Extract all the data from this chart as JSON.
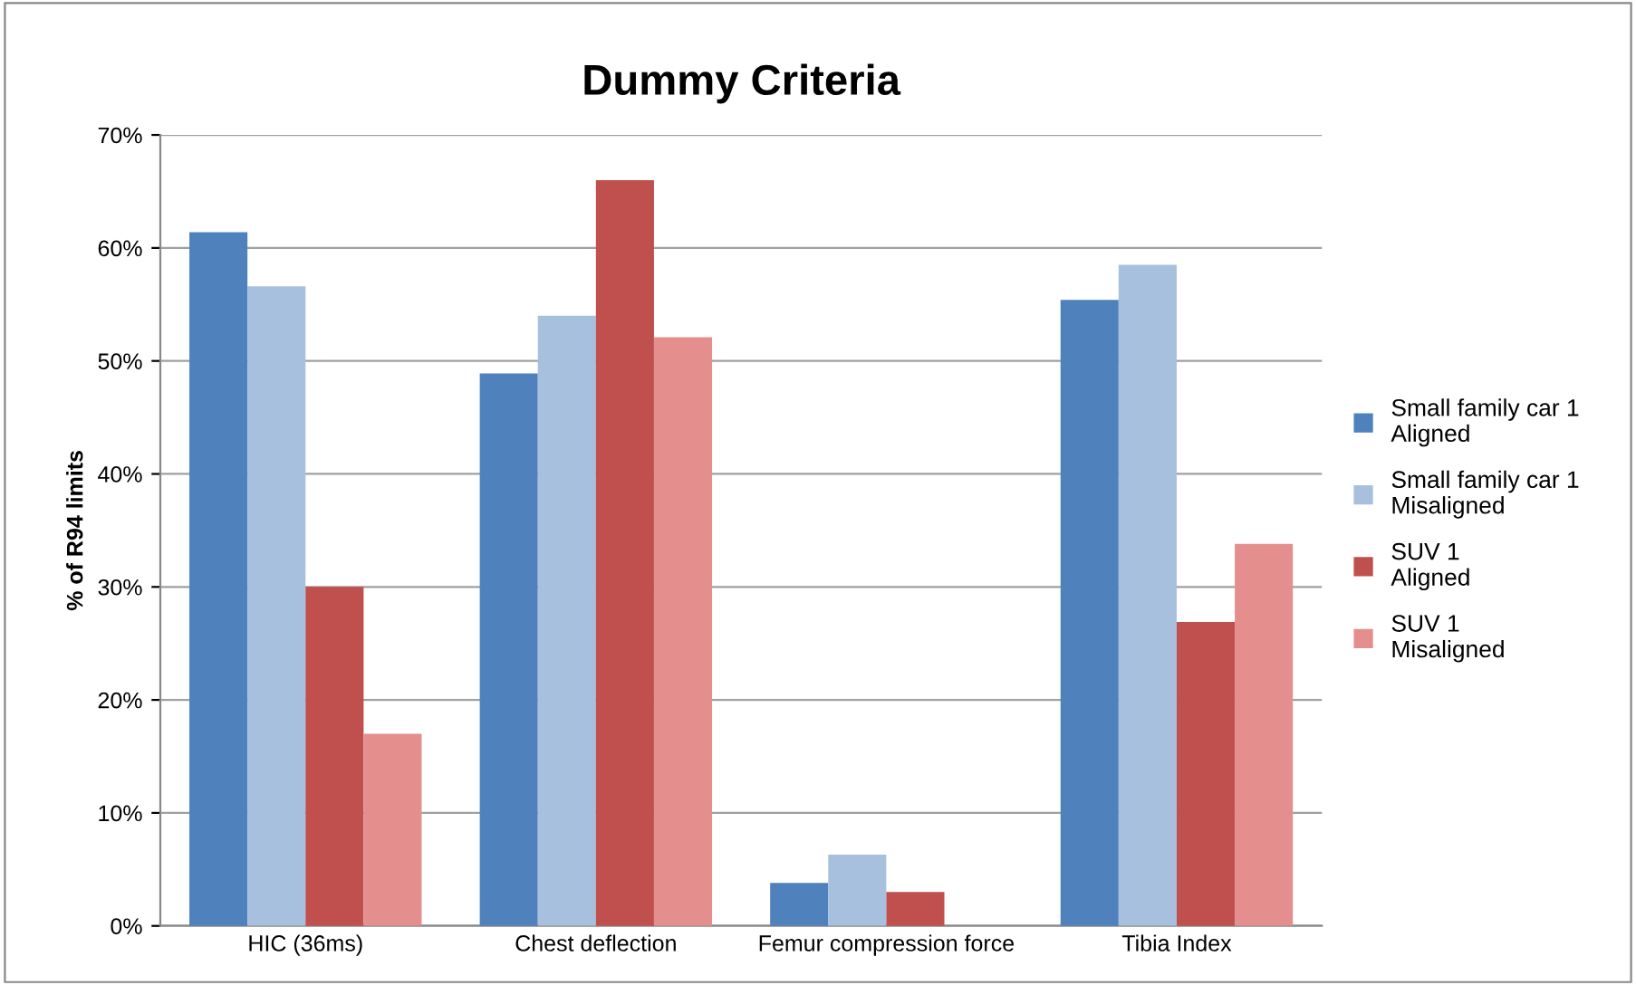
{
  "chart_data": {
    "type": "bar",
    "title": "Dummy Criteria",
    "ylabel": "% of R94 limits",
    "categories": [
      "HIC (36ms)",
      "Chest deflection",
      "Femur compression force",
      "Tibia Index"
    ],
    "series": [
      {
        "name": "Small family car 1\nAligned",
        "color": "#4f81bd",
        "values": [
          61.4,
          48.9,
          3.8,
          55.4
        ]
      },
      {
        "name": "Small family car 1\nMisaligned",
        "color": "#a7c0de",
        "values": [
          56.6,
          54.0,
          6.3,
          58.5
        ]
      },
      {
        "name": "SUV 1\nAligned",
        "color": "#c0504d",
        "values": [
          30.0,
          66.0,
          3.0,
          26.9
        ]
      },
      {
        "name": "SUV 1\nMisaligned",
        "color": "#e48f8e",
        "values": [
          17.0,
          52.1,
          0,
          33.8
        ]
      }
    ],
    "ylim": [
      0,
      70
    ],
    "yticks": [
      {
        "value": 0,
        "label": "0%"
      },
      {
        "value": 10,
        "label": "10%"
      },
      {
        "value": 20,
        "label": "20%"
      },
      {
        "value": 30,
        "label": "30%"
      },
      {
        "value": 40,
        "label": "40%"
      },
      {
        "value": 50,
        "label": "50%"
      },
      {
        "value": 60,
        "label": "60%"
      },
      {
        "value": 70,
        "label": "70%"
      }
    ],
    "grid": "y",
    "legend": "right"
  }
}
